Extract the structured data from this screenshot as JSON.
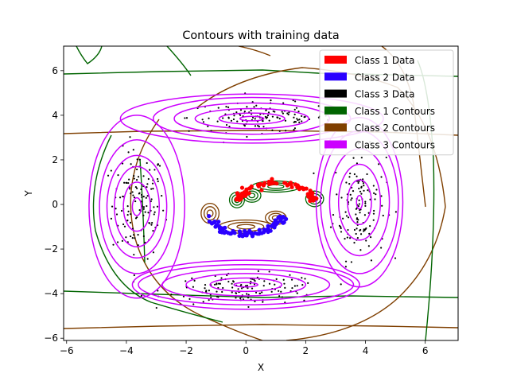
{
  "chart_data": {
    "type": "scatter",
    "title": "Contours with training data",
    "xlabel": "X",
    "ylabel": "Y",
    "xlim": [
      -6.1,
      7.1
    ],
    "ylim": [
      -6.1,
      7.1
    ],
    "xticks": [
      -6,
      -4,
      -2,
      0,
      2,
      4,
      6
    ],
    "yticks": [
      -6,
      -4,
      -2,
      0,
      2,
      4,
      6
    ],
    "xtick_labels": [
      "−6",
      "−4",
      "−2",
      "0",
      "2",
      "4",
      "6"
    ],
    "ytick_labels": [
      "−6",
      "−4",
      "−2",
      "0",
      "2",
      "4",
      "6"
    ],
    "grid": false,
    "legend_position": "top-right",
    "legend": [
      {
        "label": "Class 1 Data",
        "color": "#ff0000"
      },
      {
        "label": "Class 2 Data",
        "color": "#2a00ff"
      },
      {
        "label": "Class 3 Data",
        "color": "#000000"
      },
      {
        "label": "Class 1 Contours",
        "color": "#006400"
      },
      {
        "label": "Class 2 Contours",
        "color": "#7f3f00"
      },
      {
        "label": "Class 3 Contours",
        "color": "#cc00ff"
      }
    ],
    "class1_data": {
      "shape": "upper arc",
      "center": [
        1.0,
        0.0
      ],
      "radius": 1.3,
      "angle_range_deg": [
        10,
        170
      ],
      "count": 80
    },
    "class2_data": {
      "shape": "lower arc",
      "center": [
        0.0,
        -0.35
      ],
      "radius": 1.05,
      "angle_range_deg": [
        190,
        350
      ],
      "count": 80
    },
    "class3_data": {
      "shape": "four clusters",
      "clusters": [
        {
          "center": [
            -3.6,
            0.0
          ],
          "spread": [
            0.8,
            2.2
          ]
        },
        {
          "center": [
            3.8,
            0.0
          ],
          "spread": [
            0.8,
            2.2
          ]
        },
        {
          "center": [
            0.5,
            3.9
          ],
          "spread": [
            2.2,
            0.6
          ]
        },
        {
          "center": [
            0.0,
            -3.8
          ],
          "spread": [
            2.4,
            0.6
          ]
        }
      ],
      "count": 520
    },
    "class3_contours": {
      "color": "#cc00ff",
      "groups": [
        {
          "center": [
            -3.65,
            -0.1
          ],
          "radii_x": [
            0.15,
            0.45,
            0.75,
            1.0,
            1.25,
            1.6
          ],
          "radii_y": [
            0.4,
            1.1,
            1.8,
            2.3,
            3.0,
            4.1
          ]
        },
        {
          "center": [
            3.8,
            0.1
          ],
          "radii_x": [
            0.1,
            0.4,
            0.7,
            1.0,
            1.3,
            1.45
          ],
          "radii_y": [
            0.3,
            1.0,
            1.7,
            2.4,
            3.2,
            3.8
          ]
        },
        {
          "center": [
            0.2,
            3.85
          ],
          "radii_x": [
            0.4,
            1.1,
            1.9,
            2.6,
            3.3,
            4.4
          ],
          "radii_y": [
            0.1,
            0.25,
            0.45,
            0.7,
            0.95,
            1.1
          ]
        },
        {
          "center": [
            0.0,
            -3.6
          ],
          "radii_x": [
            0.4,
            1.2,
            2.0,
            2.8,
            3.6,
            3.8
          ],
          "radii_y": [
            0.1,
            0.3,
            0.5,
            0.7,
            0.9,
            1.1
          ]
        }
      ]
    }
  }
}
